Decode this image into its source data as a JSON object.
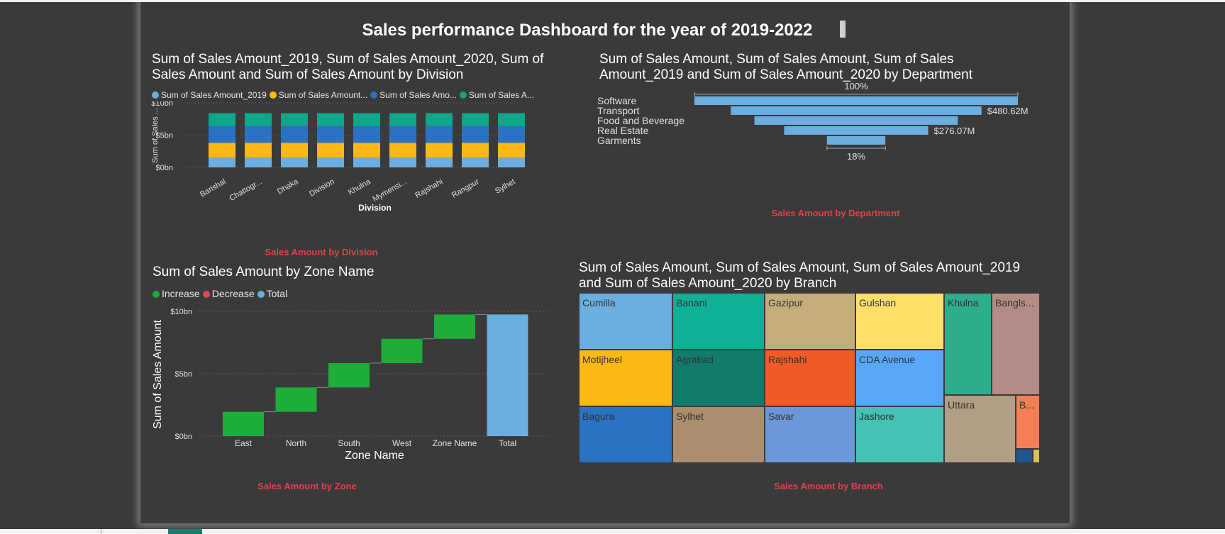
{
  "dashboard_title": "Sales performance Dashboard for the year of 2019-2022",
  "colors": {
    "sales_2019": "#6baee0",
    "sales_2020": "#fdb813",
    "sales": "#2a73c2",
    "sales_b": "#10a689",
    "increase": "#1eac3b",
    "decrease": "#d84b4b",
    "total": "#6baee0",
    "caption": "#e5404a"
  },
  "charts": {
    "division": {
      "title": "Sum of Sales Amount_2019, Sum of Sales Amount_2020, Sum of Sales Amount and Sum of Sales Amount by Division",
      "caption": "Sales Amount by Division"
    },
    "department": {
      "title": "Sum of Sales Amount, Sum of Sales Amount, Sum of Sales Amount_2019 and Sum of Sales Amount_2020 by Department",
      "caption": "Sales Amount by Department"
    },
    "zone": {
      "title": "Sum of Sales Amount by Zone Name",
      "caption": "Sales Amount by Zone"
    },
    "branch": {
      "title": "Sum of Sales Amount, Sum of Sales Amount, Sum of Sales Amount_2019 and Sum of Sales Amount_2020 by Branch",
      "caption": "Sales Amount by Branch"
    }
  },
  "chart_data": [
    {
      "type": "bar",
      "stacked": true,
      "title": "Sum of Sales Amount_2019, Sum of Sales Amount_2020, Sum of Sales Amount and Sum of Sales Amount by Division",
      "xlabel": "Division",
      "ylabel": "Sum of Sales ...",
      "ylim": [
        0,
        10
      ],
      "yticks": [
        "$0bn",
        "$5bn",
        "$10bn"
      ],
      "yticks_values": [
        0,
        5,
        10
      ],
      "grid": true,
      "legend": "top",
      "categories": [
        "Barishal",
        "Chattogr...",
        "Dhaka",
        "Division",
        "Khulna",
        "Mymensi...",
        "Rajshahi",
        "Rangpur",
        "Sylhet"
      ],
      "series": [
        {
          "name": "Sum of   Sales Amount_2019",
          "color": "#6baee0",
          "values": [
            1.5,
            1.5,
            1.5,
            1.5,
            1.5,
            1.5,
            1.5,
            1.5,
            1.5
          ]
        },
        {
          "name": "Sum of   Sales Amount...",
          "color": "#fdb813",
          "values": [
            2.3,
            2.3,
            2.3,
            2.3,
            2.3,
            2.3,
            2.3,
            2.3,
            2.3
          ]
        },
        {
          "name": "Sum of Sales Amo...",
          "color": "#2a73c2",
          "values": [
            2.6,
            2.6,
            2.6,
            2.6,
            2.6,
            2.6,
            2.6,
            2.6,
            2.6
          ]
        },
        {
          "name": "Sum of Sales A...",
          "color": "#10a689",
          "values": [
            2.0,
            2.0,
            2.0,
            2.0,
            2.0,
            2.0,
            2.0,
            2.0,
            2.0
          ]
        }
      ]
    },
    {
      "type": "funnel",
      "title": "Sum of Sales Amount, Sum of Sales Amount, Sum of Sales Amount_2019 and Sum of Sales Amount_2020 by Department",
      "categories": [
        "Software",
        "Transport",
        "Food and Beverage",
        "Real Estate",
        "Garments"
      ],
      "values": [
        620,
        480.62,
        390,
        276.07,
        112
      ],
      "data_labels": [
        "",
        "$480.62M",
        "",
        "$276.07M",
        ""
      ],
      "top_percent": "100%",
      "bottom_percent": "18%"
    },
    {
      "type": "waterfall",
      "title": "Sum of Sales Amount by Zone Name",
      "xlabel": "Zone Name",
      "ylabel": "Sum of Sales Amount",
      "ylim": [
        0,
        10
      ],
      "yticks": [
        "$0bn",
        "$5bn",
        "$10bn"
      ],
      "yticks_values": [
        0,
        5,
        10
      ],
      "grid": true,
      "legend": "top-left",
      "legend_entries": [
        {
          "name": "Increase",
          "color": "#1eac3b"
        },
        {
          "name": "Decrease",
          "color": "#d84b4b"
        },
        {
          "name": "Total",
          "color": "#6baee0"
        }
      ],
      "categories": [
        "East",
        "North",
        "South",
        "West",
        "Zone Name",
        "Total"
      ],
      "values": [
        1.95,
        1.95,
        1.95,
        1.95,
        1.95,
        9.75
      ],
      "kinds": [
        "increase",
        "increase",
        "increase",
        "increase",
        "increase",
        "total"
      ]
    },
    {
      "type": "treemap",
      "title": "Sum of Sales Amount, Sum of Sales Amount, Sum of Sales Amount_2019 and Sum of Sales Amount_2020 by Branch",
      "items": [
        {
          "name": "Cumilla",
          "color": "#6baee0"
        },
        {
          "name": "Banani",
          "color": "#10b097"
        },
        {
          "name": "Gazipur",
          "color": "#c4ad7a"
        },
        {
          "name": "Gulshan",
          "color": "#fde06a"
        },
        {
          "name": "Khulna",
          "color": "#2dad8a"
        },
        {
          "name": "Bangls...",
          "color": "#b38d85"
        },
        {
          "name": "Motijheel",
          "color": "#fdb813"
        },
        {
          "name": "Agrabad",
          "color": "#127a6a"
        },
        {
          "name": "Rajshahi",
          "color": "#f05a24"
        },
        {
          "name": "CDA Avenue",
          "color": "#5aa7f7"
        },
        {
          "name": "Uttara",
          "color": "#b09f85"
        },
        {
          "name": "B...",
          "color": "#f47f56"
        },
        {
          "name": "Bagura",
          "color": "#2a73c2"
        },
        {
          "name": "Sylhet",
          "color": "#ab8e6e"
        },
        {
          "name": "Savar",
          "color": "#6b98d8"
        },
        {
          "name": "Jashore",
          "color": "#45c2b4"
        },
        {
          "name": "",
          "color": "#23568e"
        },
        {
          "name": "",
          "color": "#d9c25a"
        }
      ]
    }
  ]
}
